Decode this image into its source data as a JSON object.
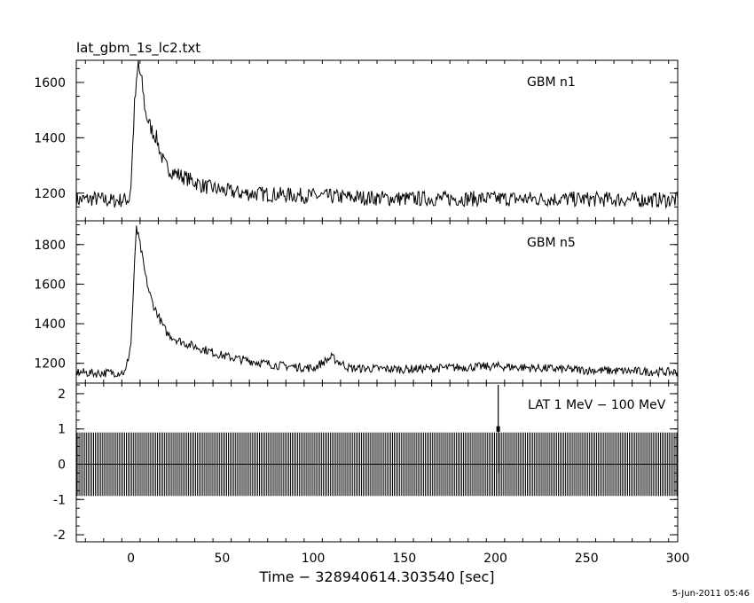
{
  "title": "lat_gbm_1s_lc2.txt",
  "xlabel": "Time − 328940614.303540 [sec]",
  "timestamp": "5-Jun-2011 05:46",
  "colors": {
    "ink": "#000000",
    "background": "#ffffff"
  },
  "chart_data": [
    {
      "type": "line",
      "name": "GBM n1",
      "label": "GBM n1",
      "xlim": [
        -30,
        300
      ],
      "ylim": [
        1100,
        1680
      ],
      "yticks": [
        1200,
        1400,
        1600
      ],
      "peak": {
        "x": 4,
        "y": 1680
      },
      "series": [
        {
          "name": "GBM n1",
          "x": [
            -30,
            -20,
            -10,
            -1,
            0,
            2,
            4,
            6,
            8,
            10,
            12,
            14,
            16,
            18,
            20,
            25,
            30,
            40,
            50,
            60,
            80,
            100,
            120,
            150,
            200,
            250,
            300
          ],
          "values": [
            1175,
            1180,
            1172,
            1178,
            1230,
            1520,
            1660,
            1600,
            1490,
            1450,
            1420,
            1400,
            1350,
            1310,
            1290,
            1270,
            1255,
            1225,
            1210,
            1200,
            1195,
            1190,
            1185,
            1180,
            1180,
            1178,
            1175
          ]
        }
      ]
    },
    {
      "type": "line",
      "name": "GBM n5",
      "label": "GBM n5",
      "xlim": [
        -30,
        300
      ],
      "ylim": [
        1100,
        1920
      ],
      "yticks": [
        1200,
        1400,
        1600,
        1800
      ],
      "peak": {
        "x": 3,
        "y": 1900
      },
      "series": [
        {
          "name": "GBM n5",
          "x": [
            -30,
            -20,
            -10,
            -3,
            0,
            2,
            3,
            5,
            8,
            10,
            12,
            14,
            16,
            18,
            20,
            25,
            30,
            40,
            50,
            60,
            80,
            100,
            110,
            120,
            150,
            200,
            250,
            300
          ],
          "values": [
            1155,
            1150,
            1152,
            1155,
            1300,
            1700,
            1880,
            1800,
            1640,
            1560,
            1500,
            1460,
            1420,
            1380,
            1350,
            1320,
            1300,
            1270,
            1240,
            1220,
            1190,
            1175,
            1230,
            1175,
            1170,
            1185,
            1165,
            1155
          ]
        }
      ]
    },
    {
      "type": "bar",
      "name": "LAT 1 MeV − 100 MeV",
      "label": "LAT 1 MeV − 100 MeV",
      "xlim": [
        -30,
        300
      ],
      "ylim": [
        -2.2,
        2.3
      ],
      "yticks": [
        -2,
        -1,
        0,
        1,
        2
      ],
      "series": [
        {
          "name": "LAT 1 MeV − 100 MeV",
          "x": [
            201.5
          ],
          "values": [
            1
          ],
          "errors": [
            1.25
          ]
        }
      ],
      "errorbar_all_bins": 0.9
    }
  ],
  "xticks": [
    0,
    50,
    100,
    150,
    200,
    250,
    300
  ]
}
